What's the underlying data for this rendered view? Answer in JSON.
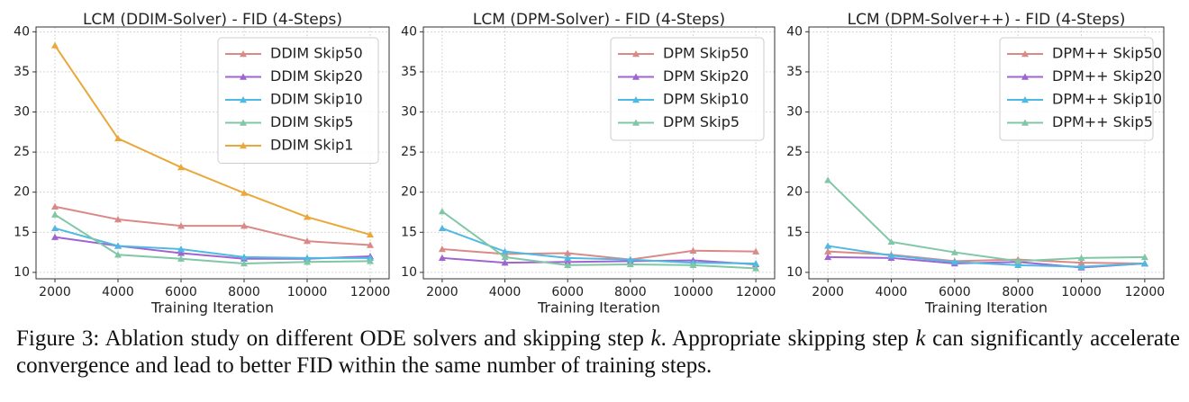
{
  "chart_data": [
    {
      "type": "line",
      "title": "LCM (DDIM-Solver) - FID (4-Steps)",
      "x_label": "Training Iteration",
      "x": [
        2000,
        4000,
        6000,
        8000,
        10000,
        12000
      ],
      "series": [
        {
          "name": "DDIM Skip50",
          "color": "#d98a87",
          "values": [
            18.2,
            16.6,
            15.8,
            15.8,
            13.9,
            13.4
          ]
        },
        {
          "name": "DDIM Skip20",
          "color": "#a064d2",
          "values": [
            14.4,
            13.3,
            12.4,
            11.7,
            11.7,
            12.0
          ]
        },
        {
          "name": "DDIM Skip10",
          "color": "#4fb9e3",
          "values": [
            15.5,
            13.3,
            12.9,
            11.9,
            11.8,
            11.8
          ]
        },
        {
          "name": "DDIM Skip5",
          "color": "#80c7a6",
          "values": [
            17.2,
            12.2,
            11.7,
            11.1,
            11.3,
            11.4
          ]
        },
        {
          "name": "DDIM Skip1",
          "color": "#eaa83a",
          "values": [
            38.3,
            26.7,
            23.1,
            19.9,
            16.9,
            14.7
          ]
        }
      ],
      "xlim": [
        1400,
        12600
      ],
      "xticks": [
        2000,
        4000,
        6000,
        8000,
        10000,
        12000
      ],
      "ylim": [
        9.2,
        40.6
      ],
      "yticks": [
        10,
        15,
        20,
        25,
        30,
        35,
        40
      ],
      "grid": true,
      "legend": "upper right"
    },
    {
      "type": "line",
      "title": "LCM (DPM-Solver) - FID (4-Steps)",
      "x_label": "Training Iteration",
      "x": [
        2000,
        4000,
        6000,
        8000,
        10000,
        12000
      ],
      "series": [
        {
          "name": "DPM Skip50",
          "color": "#d98a87",
          "values": [
            12.9,
            12.3,
            12.4,
            11.6,
            12.7,
            12.6
          ]
        },
        {
          "name": "DPM Skip20",
          "color": "#a064d2",
          "values": [
            11.8,
            11.2,
            11.3,
            11.4,
            11.5,
            11.0
          ]
        },
        {
          "name": "DPM Skip10",
          "color": "#4fb9e3",
          "values": [
            15.5,
            12.6,
            11.8,
            11.6,
            11.2,
            11.1
          ]
        },
        {
          "name": "DPM Skip5",
          "color": "#80c7a6",
          "values": [
            17.6,
            11.9,
            10.9,
            11.0,
            10.9,
            10.5
          ]
        }
      ],
      "xlim": [
        1400,
        12600
      ],
      "xticks": [
        2000,
        4000,
        6000,
        8000,
        10000,
        12000
      ],
      "ylim": [
        9.2,
        40.6
      ],
      "yticks": [
        10,
        15,
        20,
        25,
        30,
        35,
        40
      ],
      "grid": true,
      "legend": "upper right"
    },
    {
      "type": "line",
      "title": "LCM (DPM-Solver++) - FID (4-Steps)",
      "x_label": "Training Iteration",
      "x": [
        2000,
        4000,
        6000,
        8000,
        10000,
        12000
      ],
      "series": [
        {
          "name": "DPM++ Skip50",
          "color": "#d98a87",
          "values": [
            12.6,
            12.2,
            11.4,
            11.6,
            11.2,
            11.1
          ]
        },
        {
          "name": "DPM++ Skip20",
          "color": "#a064d2",
          "values": [
            11.9,
            11.8,
            11.1,
            11.3,
            10.6,
            11.1
          ]
        },
        {
          "name": "DPM++ Skip10",
          "color": "#4fb9e3",
          "values": [
            13.3,
            12.1,
            11.3,
            10.9,
            10.7,
            11.1
          ]
        },
        {
          "name": "DPM++ Skip5",
          "color": "#80c7a6",
          "values": [
            21.5,
            13.8,
            12.5,
            11.4,
            11.8,
            11.9
          ]
        }
      ],
      "xlim": [
        1400,
        12600
      ],
      "xticks": [
        2000,
        4000,
        6000,
        8000,
        10000,
        12000
      ],
      "ylim": [
        9.2,
        40.6
      ],
      "yticks": [
        10,
        15,
        20,
        25,
        30,
        35,
        40
      ],
      "grid": true,
      "legend": "upper right"
    }
  ],
  "caption": {
    "label": "Figure 3:",
    "segments": [
      " Ablation study on different ODE solvers and skipping step ",
      "k",
      ".  Appropriate skipping step ",
      "k",
      " can significantly accelerate convergence and lead to better FID within the same number of training steps."
    ]
  }
}
